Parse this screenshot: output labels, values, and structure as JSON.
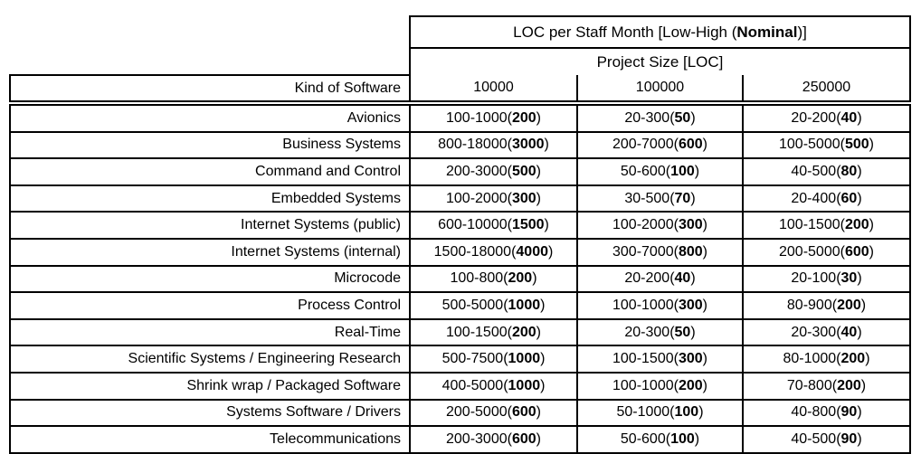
{
  "header": {
    "title_pre": "LOC per Staff Month [Low-High (",
    "title_bold": "Nominal",
    "title_post": ")]",
    "subtitle": "Project Size [LOC]",
    "row_header_label": "Kind of Software",
    "size_columns": [
      "10000",
      "100000",
      "250000"
    ]
  },
  "format": {
    "nominal_open": "(",
    "nominal_close": ")"
  },
  "colors": {
    "text": "#000000",
    "border": "#000000",
    "background": "#ffffff"
  },
  "table_rows": [
    {
      "kind": "Avionics",
      "cells": [
        {
          "range": "100-1000",
          "nominal": "200"
        },
        {
          "range": "20-300",
          "nominal": "50"
        },
        {
          "range": "20-200",
          "nominal": "40"
        }
      ]
    },
    {
      "kind": "Business Systems",
      "cells": [
        {
          "range": "800-18000",
          "nominal": "3000"
        },
        {
          "range": "200-7000",
          "nominal": "600"
        },
        {
          "range": "100-5000",
          "nominal": "500"
        }
      ]
    },
    {
      "kind": "Command and Control",
      "cells": [
        {
          "range": "200-3000",
          "nominal": "500"
        },
        {
          "range": "50-600",
          "nominal": "100"
        },
        {
          "range": "40-500",
          "nominal": "80"
        }
      ]
    },
    {
      "kind": "Embedded Systems",
      "cells": [
        {
          "range": "100-2000",
          "nominal": "300"
        },
        {
          "range": "30-500",
          "nominal": "70"
        },
        {
          "range": "20-400",
          "nominal": "60"
        }
      ]
    },
    {
      "kind": "Internet Systems (public)",
      "cells": [
        {
          "range": "600-10000",
          "nominal": "1500"
        },
        {
          "range": "100-2000",
          "nominal": "300"
        },
        {
          "range": "100-1500",
          "nominal": "200"
        }
      ]
    },
    {
      "kind": "Internet Systems (internal)",
      "cells": [
        {
          "range": "1500-18000",
          "nominal": "4000"
        },
        {
          "range": "300-7000",
          "nominal": "800"
        },
        {
          "range": "200-5000",
          "nominal": "600"
        }
      ]
    },
    {
      "kind": "Microcode",
      "cells": [
        {
          "range": "100-800",
          "nominal": "200"
        },
        {
          "range": "20-200",
          "nominal": "40"
        },
        {
          "range": "20-100",
          "nominal": "30"
        }
      ]
    },
    {
      "kind": "Process Control",
      "cells": [
        {
          "range": "500-5000",
          "nominal": "1000"
        },
        {
          "range": "100-1000",
          "nominal": "300"
        },
        {
          "range": "80-900",
          "nominal": "200"
        }
      ]
    },
    {
      "kind": "Real-Time",
      "cells": [
        {
          "range": "100-1500",
          "nominal": "200"
        },
        {
          "range": "20-300",
          "nominal": "50"
        },
        {
          "range": "20-300",
          "nominal": "40"
        }
      ]
    },
    {
      "kind": "Scientific Systems / Engineering Research",
      "cells": [
        {
          "range": "500-7500",
          "nominal": "1000"
        },
        {
          "range": "100-1500",
          "nominal": "300"
        },
        {
          "range": "80-1000",
          "nominal": "200"
        }
      ]
    },
    {
      "kind": "Shrink wrap / Packaged Software",
      "cells": [
        {
          "range": "400-5000",
          "nominal": "1000"
        },
        {
          "range": "100-1000",
          "nominal": "200"
        },
        {
          "range": "70-800",
          "nominal": "200"
        }
      ]
    },
    {
      "kind": "Systems Software / Drivers",
      "cells": [
        {
          "range": "200-5000",
          "nominal": "600"
        },
        {
          "range": "50-1000",
          "nominal": "100"
        },
        {
          "range": "40-800",
          "nominal": "90"
        }
      ]
    },
    {
      "kind": "Telecommunications",
      "cells": [
        {
          "range": "200-3000",
          "nominal": "600"
        },
        {
          "range": "50-600",
          "nominal": "100"
        },
        {
          "range": "40-500",
          "nominal": "90"
        }
      ]
    }
  ]
}
